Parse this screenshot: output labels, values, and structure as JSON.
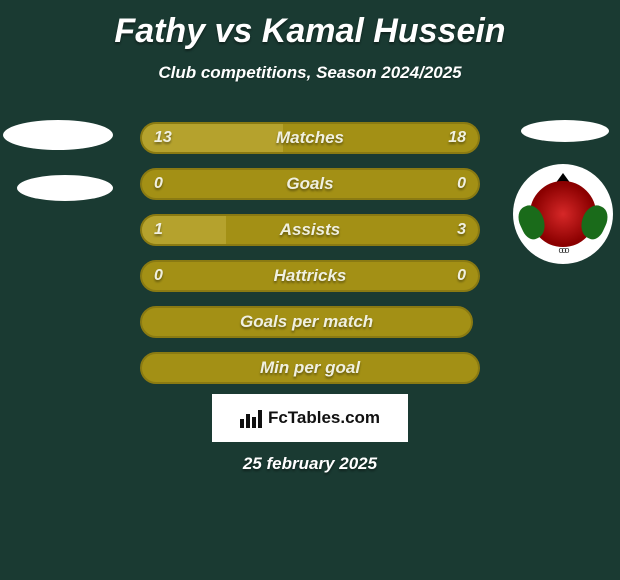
{
  "title": "Fathy vs Kamal Hussein",
  "subtitle": "Club competitions, Season 2024/2025",
  "date": "25 february 2025",
  "watermark": "FcTables.com",
  "colors": {
    "background": "#1a3a32",
    "white": "#ffffff",
    "bar_olive": "#a39015",
    "bar_olive_border": "#8a7a12",
    "bar_left_fill": "#b5a22d",
    "text_light": "#f0f0e0"
  },
  "bars": [
    {
      "label": "Matches",
      "left_value": "13",
      "right_value": "18",
      "left_pct": 42,
      "right_pct": 58,
      "bar_width_pct": 100,
      "show_right_fill": true
    },
    {
      "label": "Goals",
      "left_value": "0",
      "right_value": "0",
      "left_pct": 0,
      "right_pct": 0,
      "bar_width_pct": 100,
      "show_right_fill": false
    },
    {
      "label": "Assists",
      "left_value": "1",
      "right_value": "3",
      "left_pct": 25,
      "right_pct": 75,
      "bar_width_pct": 100,
      "show_right_fill": true
    },
    {
      "label": "Hattricks",
      "left_value": "0",
      "right_value": "0",
      "left_pct": 0,
      "right_pct": 0,
      "bar_width_pct": 100,
      "show_right_fill": false
    },
    {
      "label": "Goals per match",
      "left_value": "",
      "right_value": "",
      "left_pct": 0,
      "right_pct": 0,
      "bar_width_pct": 98,
      "show_right_fill": false
    },
    {
      "label": "Min per goal",
      "left_value": "",
      "right_value": "",
      "left_pct": 0,
      "right_pct": 0,
      "bar_width_pct": 100,
      "show_right_fill": false
    }
  ],
  "left_player_shapes": 2,
  "right_player_has_badge": true
}
